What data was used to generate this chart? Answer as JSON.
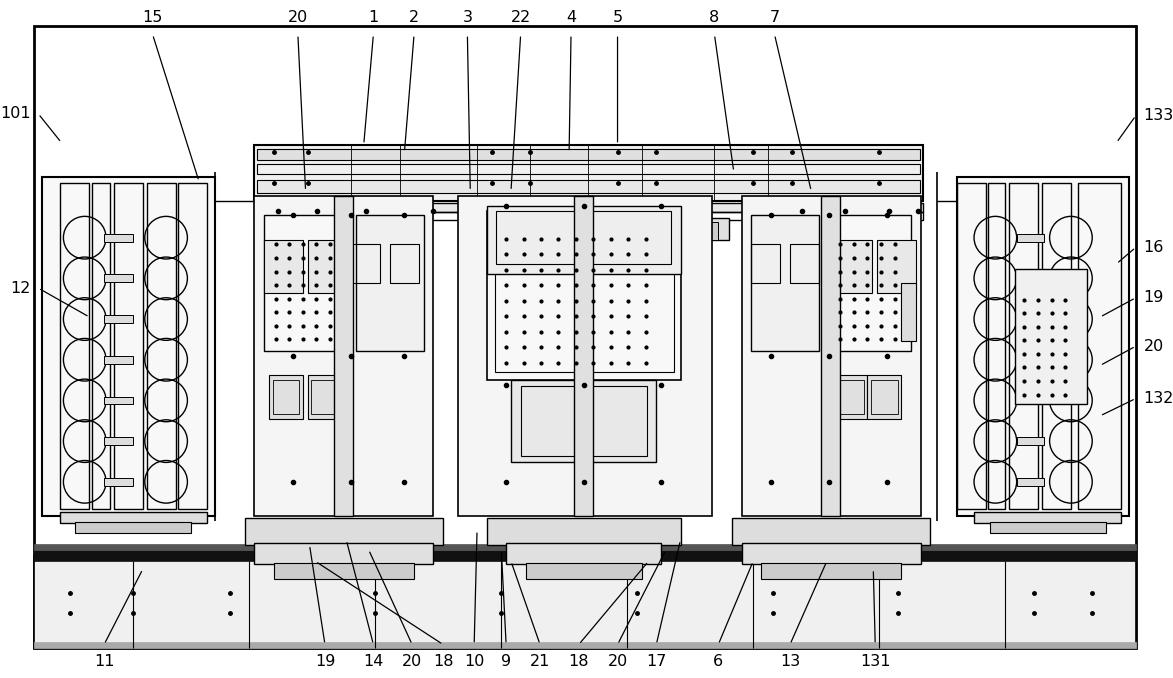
{
  "bg": "#ffffff",
  "lc": "#000000",
  "fig_w": 11.73,
  "fig_h": 6.78,
  "dpi": 100
}
